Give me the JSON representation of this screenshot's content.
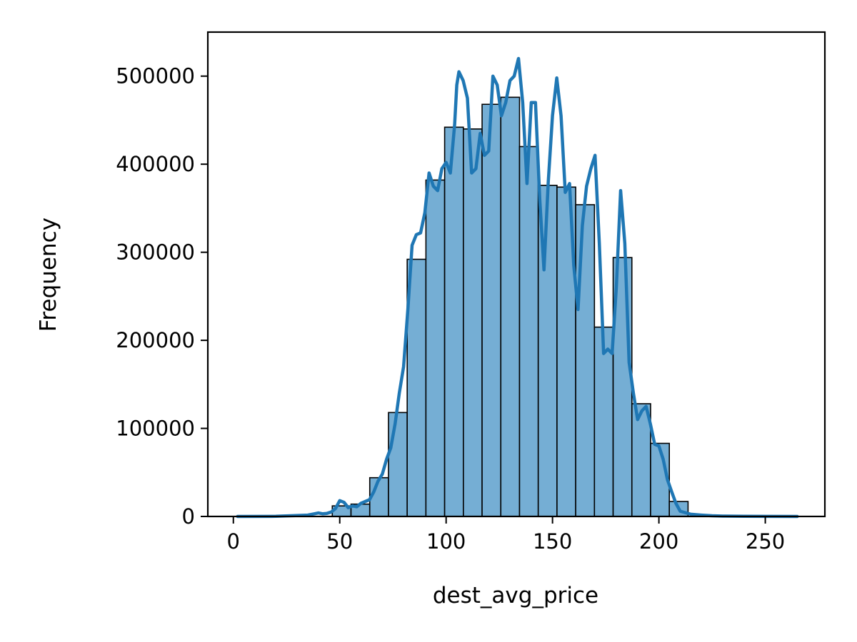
{
  "chart_data": {
    "type": "bar",
    "title": "",
    "xlabel": "dest_avg_price",
    "ylabel": "Frequency",
    "xlim": [
      -12,
      278
    ],
    "ylim": [
      0,
      550000
    ],
    "grid": false,
    "legend": "none",
    "x_ticks": [
      0,
      50,
      100,
      150,
      200,
      250
    ],
    "x_tick_labels": [
      "0",
      "50",
      "100",
      "150",
      "200",
      "250"
    ],
    "y_ticks": [
      0,
      100000,
      200000,
      300000,
      400000,
      500000
    ],
    "y_tick_labels": [
      "0",
      "100000",
      "200000",
      "300000",
      "400000",
      "500000"
    ],
    "bin_edges": [
      46.5,
      55.3,
      64.1,
      72.9,
      81.7,
      90.5,
      99.3,
      108.1,
      116.9,
      125.7,
      134.5,
      143.3,
      152.1,
      160.9,
      169.7,
      178.5,
      187.3,
      196.1,
      204.9,
      213.7
    ],
    "bin_counts": [
      12000,
      14000,
      44000,
      118000,
      292000,
      382000,
      442000,
      440000,
      468000,
      476000,
      420000,
      376000,
      374000,
      354000,
      215000,
      294000,
      128000,
      83000,
      17000
    ],
    "kde_curve": {
      "x": [
        2,
        20,
        35,
        38,
        40,
        42,
        44,
        46,
        48,
        50,
        52,
        54,
        56,
        58,
        60,
        62,
        64,
        66,
        68,
        70,
        72,
        74,
        76,
        78,
        80,
        82,
        84,
        86,
        88,
        90,
        92,
        94,
        96,
        98,
        100,
        102,
        104,
        105,
        106,
        108,
        110,
        112,
        114,
        116,
        118,
        120,
        122,
        124,
        126,
        128,
        130,
        132,
        134,
        136,
        138,
        140,
        142,
        144,
        146,
        148,
        150,
        152,
        154,
        156,
        158,
        160,
        162,
        164,
        166,
        168,
        170,
        172,
        174,
        176,
        178,
        180,
        182,
        184,
        186,
        188,
        190,
        192,
        194,
        196,
        198,
        200,
        202,
        204,
        206,
        208,
        210,
        215,
        220,
        225,
        230,
        240,
        250,
        265
      ],
      "y": [
        0,
        200,
        1500,
        3000,
        4000,
        3000,
        3500,
        5000,
        9000,
        18000,
        16000,
        10000,
        12000,
        11000,
        15000,
        17000,
        19000,
        28000,
        40000,
        48000,
        65000,
        78000,
        105000,
        140000,
        170000,
        235000,
        308000,
        320000,
        322000,
        345000,
        390000,
        375000,
        370000,
        395000,
        402000,
        390000,
        445000,
        490000,
        505000,
        495000,
        475000,
        390000,
        395000,
        435000,
        410000,
        415000,
        500000,
        490000,
        455000,
        470000,
        495000,
        500000,
        520000,
        470000,
        378000,
        470000,
        470000,
        360000,
        280000,
        380000,
        455000,
        498000,
        455000,
        368000,
        378000,
        285000,
        235000,
        330000,
        375000,
        395000,
        410000,
        310000,
        185000,
        190000,
        185000,
        260000,
        370000,
        310000,
        175000,
        140000,
        110000,
        120000,
        125000,
        105000,
        82000,
        80000,
        65000,
        42000,
        28000,
        15000,
        6000,
        2500,
        1500,
        800,
        400,
        200,
        100,
        0
      ]
    },
    "colors": {
      "bar_fill": "#75aed4",
      "bar_edge": "#000000",
      "kde_line": "#1f77b4",
      "axes": "#000000"
    }
  }
}
